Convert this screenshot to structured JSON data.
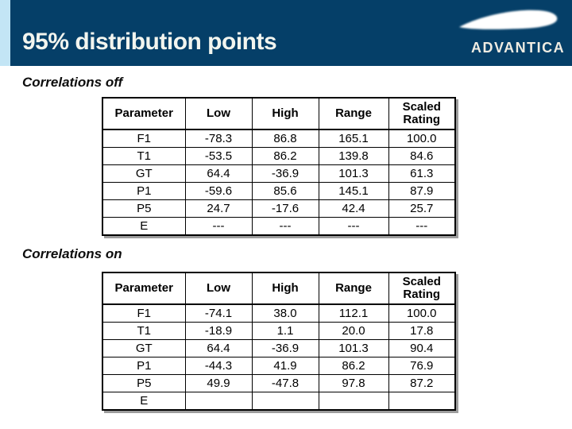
{
  "header": {
    "title": "95% distribution points",
    "logo_text": "ADVANTICA",
    "colors": {
      "band": "#053f68",
      "edge_strip": "#c3e5f5",
      "title_text": "#f2f5ef"
    }
  },
  "sections": [
    {
      "label": "Correlations off",
      "table": {
        "columns": [
          "Parameter",
          "Low",
          "High",
          "Range",
          "Scaled Rating"
        ],
        "rows": [
          [
            "F1",
            "-78.3",
            "86.8",
            "165.1",
            "100.0"
          ],
          [
            "T1",
            "-53.5",
            "86.2",
            "139.8",
            "84.6"
          ],
          [
            "GT",
            "64.4",
            "-36.9",
            "101.3",
            "61.3"
          ],
          [
            "P1",
            "-59.6",
            "85.6",
            "145.1",
            "87.9"
          ],
          [
            "P5",
            "24.7",
            "-17.6",
            "42.4",
            "25.7"
          ],
          [
            "E",
            "---",
            "---",
            "---",
            "---"
          ]
        ]
      }
    },
    {
      "label": "Correlations on",
      "table": {
        "columns": [
          "Parameter",
          "Low",
          "High",
          "Range",
          "Scaled Rating"
        ],
        "rows": [
          [
            "F1",
            "-74.1",
            "38.0",
            "112.1",
            "100.0"
          ],
          [
            "T1",
            "-18.9",
            "1.1",
            "20.0",
            "17.8"
          ],
          [
            "GT",
            "64.4",
            "-36.9",
            "101.3",
            "90.4"
          ],
          [
            "P1",
            "-44.3",
            "41.9",
            "86.2",
            "76.9"
          ],
          [
            "P5",
            "49.9",
            "-47.8",
            "97.8",
            "87.2"
          ],
          [
            "E",
            "",
            "",
            "",
            ""
          ]
        ]
      }
    }
  ]
}
